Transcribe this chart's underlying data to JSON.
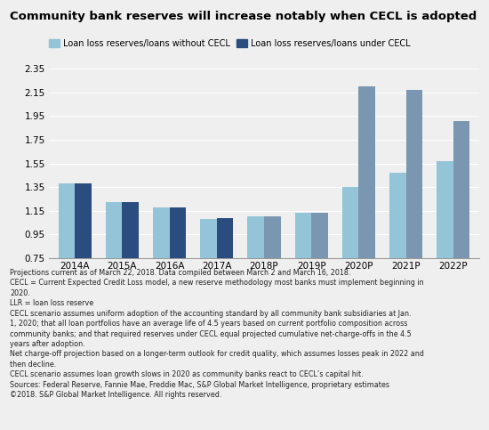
{
  "title": "Community bank reserves will increase notably when CECL is adopted",
  "categories": [
    "2014A",
    "2015A",
    "2016A",
    "2017A",
    "2018P",
    "2019P",
    "2020P",
    "2021P",
    "2022P"
  ],
  "without_cecl": [
    1.38,
    1.22,
    1.18,
    1.08,
    1.1,
    1.13,
    1.35,
    1.47,
    1.57
  ],
  "under_cecl": [
    1.38,
    1.22,
    1.18,
    1.09,
    1.1,
    1.13,
    2.2,
    2.17,
    1.91
  ],
  "color_without_cecl": "#93C4D8",
  "color_under_cecl_actual": "#2B4C7E",
  "color_under_cecl_proj": "#7A96B0",
  "ylim_min": 0.75,
  "ylim_max": 2.35,
  "yticks": [
    0.75,
    0.95,
    1.15,
    1.35,
    1.55,
    1.75,
    1.95,
    2.15,
    2.35
  ],
  "legend_label_1": "Loan loss reserves/loans without CECL",
  "legend_label_2": "Loan loss reserves/loans under CECL",
  "footnote_lines": [
    "Projections current as of March 22, 2018. Data compiled between March 2 and March 16, 2018.",
    "CECL = Current Expected Credit Loss model, a new reserve methodology most banks must implement beginning in",
    "2020.",
    "LLR = loan loss reserve",
    "CECL scenario assumes uniform adoption of the accounting standard by all community bank subsidiaries at Jan.",
    "1, 2020; that all loan portfolios have an average life of 4.5 years based on current portfolio composition across",
    "community banks; and that required reserves under CECL equal projected cumulative net-charge-offs in the 4.5",
    "years after adoption.",
    "Net charge-off projection based on a longer-term outlook for credit quality, which assumes losses peak in 2022 and",
    "then decline.",
    "CECL scenario assumes loan growth slows in 2020 as community banks react to CECL’s capital hit.",
    "Sources: Federal Reserve, Fannie Mae, Freddie Mac, S&P Global Market Intelligence, proprietary estimates",
    "©2018. S&P Global Market Intelligence. All rights reserved."
  ],
  "background_color": "#EFEFEF",
  "bar_width": 0.35
}
